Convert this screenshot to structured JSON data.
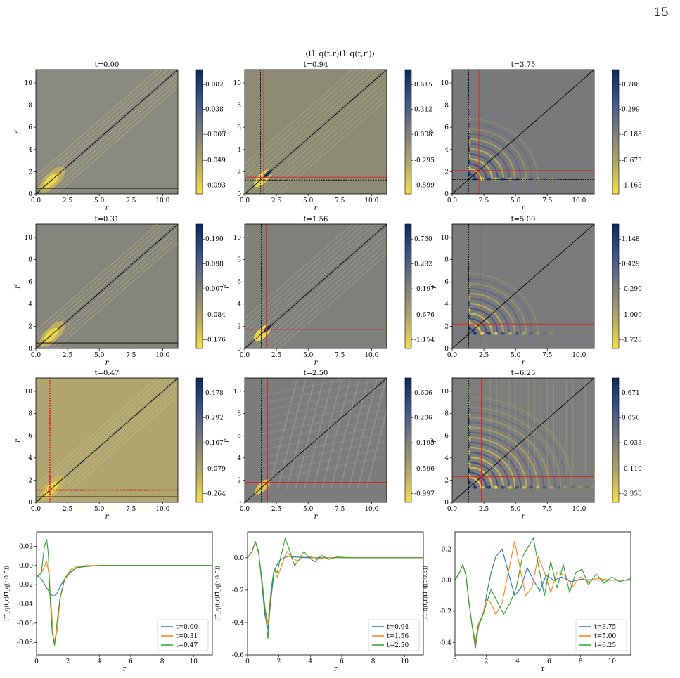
{
  "page": {
    "number": "15"
  },
  "figure": {
    "suptitle": "⟨Π̂_q(t,r)Π̂_q(t,r′)⟩"
  },
  "heatmaps": [
    {
      "title": "t=0.00",
      "xlabel": "r",
      "ylabel": "r′",
      "xticks": [
        "0.0",
        "2.5",
        "5.0",
        "7.5",
        "10.0"
      ],
      "yticks": [
        "0",
        "2",
        "4",
        "6",
        "8",
        "10"
      ],
      "colorbar": [
        "0.082",
        "0.038",
        "-0.005",
        "-0.049",
        "-0.093"
      ],
      "background": "#8a8a80",
      "red_marker": null,
      "black_marker": 0.5,
      "style": "blob0"
    },
    {
      "title": "t=0.94",
      "xlabel": "r",
      "ylabel": "r′",
      "xticks": [
        "0.0",
        "2.5",
        "5.0",
        "7.5",
        "10.0"
      ],
      "yticks": [
        "0",
        "2",
        "4",
        "6",
        "8",
        "10"
      ],
      "colorbar": [
        "0.615",
        "0.312",
        "0.008",
        "-0.295",
        "-0.599"
      ],
      "background": "#8e8b74",
      "red_marker": 1.5,
      "black_marker": 1.25,
      "style": "early"
    },
    {
      "title": "t=3.75",
      "xlabel": "r",
      "ylabel": "r′",
      "xticks": [
        "0.0",
        "2.5",
        "5.0",
        "7.5",
        "10.0"
      ],
      "yticks": [
        "0",
        "2",
        "4",
        "6",
        "8",
        "10"
      ],
      "colorbar": [
        "0.786",
        "0.299",
        "-0.188",
        "-0.675",
        "-1.163"
      ],
      "background": "#78797b",
      "red_marker": 2.1,
      "black_marker": 1.3,
      "style": "wave"
    },
    {
      "title": "t=0.31",
      "xlabel": "r",
      "ylabel": "r′",
      "xticks": [
        "0.0",
        "2.5",
        "5.0",
        "7.5",
        "10.0"
      ],
      "yticks": [
        "0",
        "2",
        "4",
        "6",
        "8",
        "10"
      ],
      "colorbar": [
        "0.190",
        "0.098",
        "0.007",
        "-0.084",
        "-0.176"
      ],
      "background": "#85857e",
      "red_marker": null,
      "black_marker": 0.5,
      "style": "blob1"
    },
    {
      "title": "t=1.56",
      "xlabel": "r",
      "ylabel": "r′",
      "xticks": [
        "0.0",
        "2.5",
        "5.0",
        "7.5",
        "10.0"
      ],
      "yticks": [
        "0",
        "2",
        "4",
        "6",
        "8",
        "10"
      ],
      "colorbar": [
        "0.760",
        "0.282",
        "-0.197",
        "-0.676",
        "-1.154"
      ],
      "background": "#7f7f7b",
      "red_marker": 1.7,
      "black_marker": 1.3,
      "style": "early"
    },
    {
      "title": "t=5.00",
      "xlabel": "r",
      "ylabel": "r′",
      "xticks": [
        "0.0",
        "2.5",
        "5.0",
        "7.5",
        "10.0"
      ],
      "yticks": [
        "0",
        "2",
        "4",
        "6",
        "8",
        "10"
      ],
      "colorbar": [
        "1.148",
        "0.429",
        "-0.290",
        "-1.009",
        "-1.728"
      ],
      "background": "#7a7b7c",
      "red_marker": 2.2,
      "black_marker": 1.3,
      "style": "wave"
    },
    {
      "title": "t=0.47",
      "xlabel": "r",
      "ylabel": "r′",
      "xticks": [
        "0.0",
        "2.5",
        "5.0",
        "7.5",
        "10.0"
      ],
      "yticks": [
        "0",
        "2",
        "4",
        "6",
        "8",
        "10"
      ],
      "colorbar": [
        "0.478",
        "0.292",
        "0.107",
        "-0.079",
        "-0.264"
      ],
      "background": "#b0a471",
      "red_marker": 1.1,
      "black_marker": 0.5,
      "style": "blob2"
    },
    {
      "title": "t=2.50",
      "xlabel": "r",
      "ylabel": "r′",
      "xticks": [
        "0.0",
        "2.5",
        "5.0",
        "7.5",
        "10.0"
      ],
      "yticks": [
        "0",
        "2",
        "4",
        "6",
        "8",
        "10"
      ],
      "colorbar": [
        "0.606",
        "0.206",
        "-0.195",
        "-0.596",
        "-0.997"
      ],
      "background": "#7b7c7b",
      "red_marker": 1.8,
      "black_marker": 1.3,
      "style": "streaks"
    },
    {
      "title": "t=6.25",
      "xlabel": "r",
      "ylabel": "r′",
      "xticks": [
        "0.0",
        "2.5",
        "5.0",
        "7.5",
        "10.0"
      ],
      "yticks": [
        "0",
        "2",
        "4",
        "6",
        "8",
        "10"
      ],
      "colorbar": [
        "0.671",
        "0.056",
        "-0.033",
        "-0.110",
        "-2.356"
      ],
      "background": "#7d7d7c",
      "red_marker": 2.3,
      "black_marker": 1.3,
      "style": "late"
    }
  ],
  "chart_data": [
    {
      "type": "line",
      "xlabel": "r",
      "ylabel": "⟨Π̂_q(t,r)Π̂_q(t,0.5)⟩",
      "xlim": [
        0,
        11.2
      ],
      "ylim": [
        -0.093,
        0.035
      ],
      "xticks": [
        "0",
        "2",
        "4",
        "6",
        "8",
        "10"
      ],
      "yticks": [
        "0.02",
        "0.00",
        "-0.02",
        "-0.04",
        "-0.06",
        "-0.08"
      ],
      "legend": "lower-right",
      "series": [
        {
          "name": "t=0.00",
          "color": "#1f77b4",
          "x": [
            0,
            0.3,
            0.6,
            0.9,
            1.1,
            1.3,
            1.6,
            2.0,
            2.5,
            3.0,
            4,
            6,
            8,
            11.2
          ],
          "y": [
            -0.01,
            -0.014,
            -0.022,
            -0.03,
            -0.032,
            -0.029,
            -0.019,
            -0.009,
            -0.003,
            -0.001,
            0,
            0,
            0,
            0
          ]
        },
        {
          "name": "t=0.31",
          "color": "#ff7f0e",
          "x": [
            0,
            0.3,
            0.5,
            0.65,
            0.8,
            1.0,
            1.1,
            1.3,
            1.5,
            1.8,
            2.2,
            2.6,
            3.2,
            4,
            6,
            8,
            11.2
          ],
          "y": [
            -0.011,
            -0.008,
            -0.001,
            0.004,
            -0.01,
            -0.058,
            -0.08,
            -0.07,
            -0.035,
            -0.013,
            -0.004,
            -0.001,
            0,
            0,
            0,
            0,
            0
          ]
        },
        {
          "name": "t=0.47",
          "color": "#2ca02c",
          "x": [
            0,
            0.3,
            0.5,
            0.65,
            0.75,
            0.85,
            1.0,
            1.15,
            1.3,
            1.5,
            1.8,
            2.2,
            2.6,
            3.2,
            4,
            6,
            8,
            11.2
          ],
          "y": [
            -0.012,
            -0.008,
            0.02,
            0.027,
            0.012,
            -0.03,
            -0.07,
            -0.083,
            -0.06,
            -0.033,
            -0.014,
            -0.006,
            -0.002,
            -0.001,
            0,
            0,
            0,
            0
          ]
        }
      ]
    },
    {
      "type": "line",
      "xlabel": "r",
      "ylabel": "⟨Π̂_q(t,r)Π̂_q(t,0.5)⟩",
      "xlim": [
        0,
        11.2
      ],
      "ylim": [
        -0.6,
        0.16
      ],
      "xticks": [
        "0",
        "2",
        "4",
        "6",
        "8",
        "10"
      ],
      "yticks": [
        "0.0",
        "-0.2",
        "-0.4",
        "-0.6"
      ],
      "legend": "lower-right",
      "series": [
        {
          "name": "t=0.94",
          "color": "#1f77b4",
          "x": [
            0,
            0.3,
            0.5,
            0.7,
            0.9,
            1.1,
            1.3,
            1.5,
            1.7,
            2.0,
            2.3,
            2.6,
            3.0,
            3.4,
            3.8,
            4.5,
            6,
            8,
            11.2
          ],
          "y": [
            0.0,
            0.04,
            0.1,
            0.04,
            -0.15,
            -0.35,
            -0.44,
            -0.25,
            -0.08,
            -0.02,
            0.0,
            0.01,
            0.005,
            0.003,
            0.0,
            0.0,
            0,
            0,
            0
          ]
        },
        {
          "name": "t=1.56",
          "color": "#ff7f0e",
          "x": [
            0,
            0.3,
            0.5,
            0.7,
            0.9,
            1.1,
            1.3,
            1.5,
            1.7,
            1.9,
            2.2,
            2.5,
            2.8,
            3.2,
            3.6,
            4,
            4.5,
            5,
            6,
            8,
            11.2
          ],
          "y": [
            0.0,
            0.04,
            0.1,
            0.04,
            -0.13,
            -0.3,
            -0.41,
            -0.2,
            -0.07,
            -0.12,
            -0.04,
            0.04,
            0.0,
            -0.02,
            0.01,
            0.005,
            -0.005,
            0.0,
            0,
            0,
            0
          ]
        },
        {
          "name": "t=2.50",
          "color": "#2ca02c",
          "x": [
            0,
            0.3,
            0.5,
            0.7,
            0.9,
            1.1,
            1.3,
            1.5,
            1.7,
            1.9,
            2.1,
            2.4,
            2.7,
            3.0,
            3.3,
            3.6,
            3.9,
            4.3,
            4.7,
            5.2,
            5.7,
            6.5,
            8,
            11.2
          ],
          "y": [
            0.0,
            0.04,
            0.1,
            0.03,
            -0.12,
            -0.3,
            -0.5,
            -0.2,
            -0.07,
            -0.09,
            0.0,
            0.12,
            0.04,
            -0.05,
            -0.01,
            0.04,
            0.0,
            -0.025,
            0.015,
            -0.01,
            0.005,
            0.0,
            0,
            0
          ]
        }
      ]
    },
    {
      "type": "line",
      "xlabel": "r",
      "ylabel": "⟨Π̂_q(t,r)Π̂_q(t,0.5)⟩",
      "xlim": [
        0,
        11.2
      ],
      "ylim": [
        -0.48,
        0.31
      ],
      "xticks": [
        "0",
        "2",
        "4",
        "6",
        "8",
        "10"
      ],
      "yticks": [
        "0.2",
        "0.0",
        "-0.2",
        "-0.4"
      ],
      "legend": "lower-right",
      "series": [
        {
          "name": "t=3.75",
          "color": "#1f77b4",
          "x": [
            0,
            0.3,
            0.5,
            0.7,
            0.9,
            1.1,
            1.3,
            1.5,
            1.8,
            2.0,
            2.3,
            2.6,
            3.0,
            3.4,
            3.8,
            4.2,
            4.6,
            5.0,
            5.4,
            5.8,
            6.3,
            6.8,
            7.4,
            8,
            9,
            10,
            11.2
          ],
          "y": [
            0.0,
            0.05,
            0.1,
            0.03,
            -0.15,
            -0.3,
            -0.44,
            -0.3,
            -0.22,
            -0.1,
            0.05,
            0.15,
            0.2,
            0.05,
            -0.1,
            -0.05,
            0.08,
            0.0,
            -0.07,
            0.03,
            0.0,
            0.02,
            -0.01,
            0.005,
            0.0,
            0.0,
            0.0
          ]
        },
        {
          "name": "t=5.00",
          "color": "#ff7f0e",
          "x": [
            0,
            0.3,
            0.5,
            0.7,
            0.9,
            1.1,
            1.3,
            1.5,
            1.8,
            2.0,
            2.3,
            2.6,
            3.0,
            3.4,
            3.8,
            4.1,
            4.5,
            4.9,
            5.3,
            5.7,
            6.1,
            6.5,
            7.0,
            7.5,
            8,
            8.5,
            9,
            10,
            11.2
          ],
          "y": [
            0.0,
            0.05,
            0.1,
            0.03,
            -0.15,
            -0.3,
            -0.42,
            -0.3,
            -0.21,
            -0.12,
            -0.15,
            -0.22,
            -0.15,
            0.05,
            0.25,
            0.1,
            -0.1,
            -0.05,
            0.15,
            0.05,
            -0.08,
            0.05,
            0.03,
            -0.04,
            0.02,
            -0.01,
            0.01,
            0.0,
            0.0
          ]
        },
        {
          "name": "t=6.25",
          "color": "#2ca02c",
          "x": [
            0,
            0.3,
            0.5,
            0.7,
            0.9,
            1.1,
            1.3,
            1.5,
            1.8,
            2.0,
            2.3,
            2.7,
            3.1,
            3.5,
            3.9,
            4.3,
            4.7,
            5.0,
            5.3,
            5.7,
            6.1,
            6.5,
            6.9,
            7.3,
            7.7,
            8.1,
            8.5,
            9,
            9.5,
            10,
            10.5,
            11.2
          ],
          "y": [
            0.0,
            0.05,
            0.1,
            0.03,
            -0.15,
            -0.3,
            -0.4,
            -0.28,
            -0.22,
            -0.15,
            -0.06,
            -0.14,
            -0.22,
            -0.15,
            -0.05,
            0.15,
            0.22,
            0.27,
            0.1,
            -0.1,
            0.12,
            -0.05,
            0.1,
            -0.08,
            0.05,
            0.07,
            -0.03,
            0.04,
            -0.02,
            0.02,
            -0.01,
            0.01
          ]
        }
      ]
    }
  ]
}
